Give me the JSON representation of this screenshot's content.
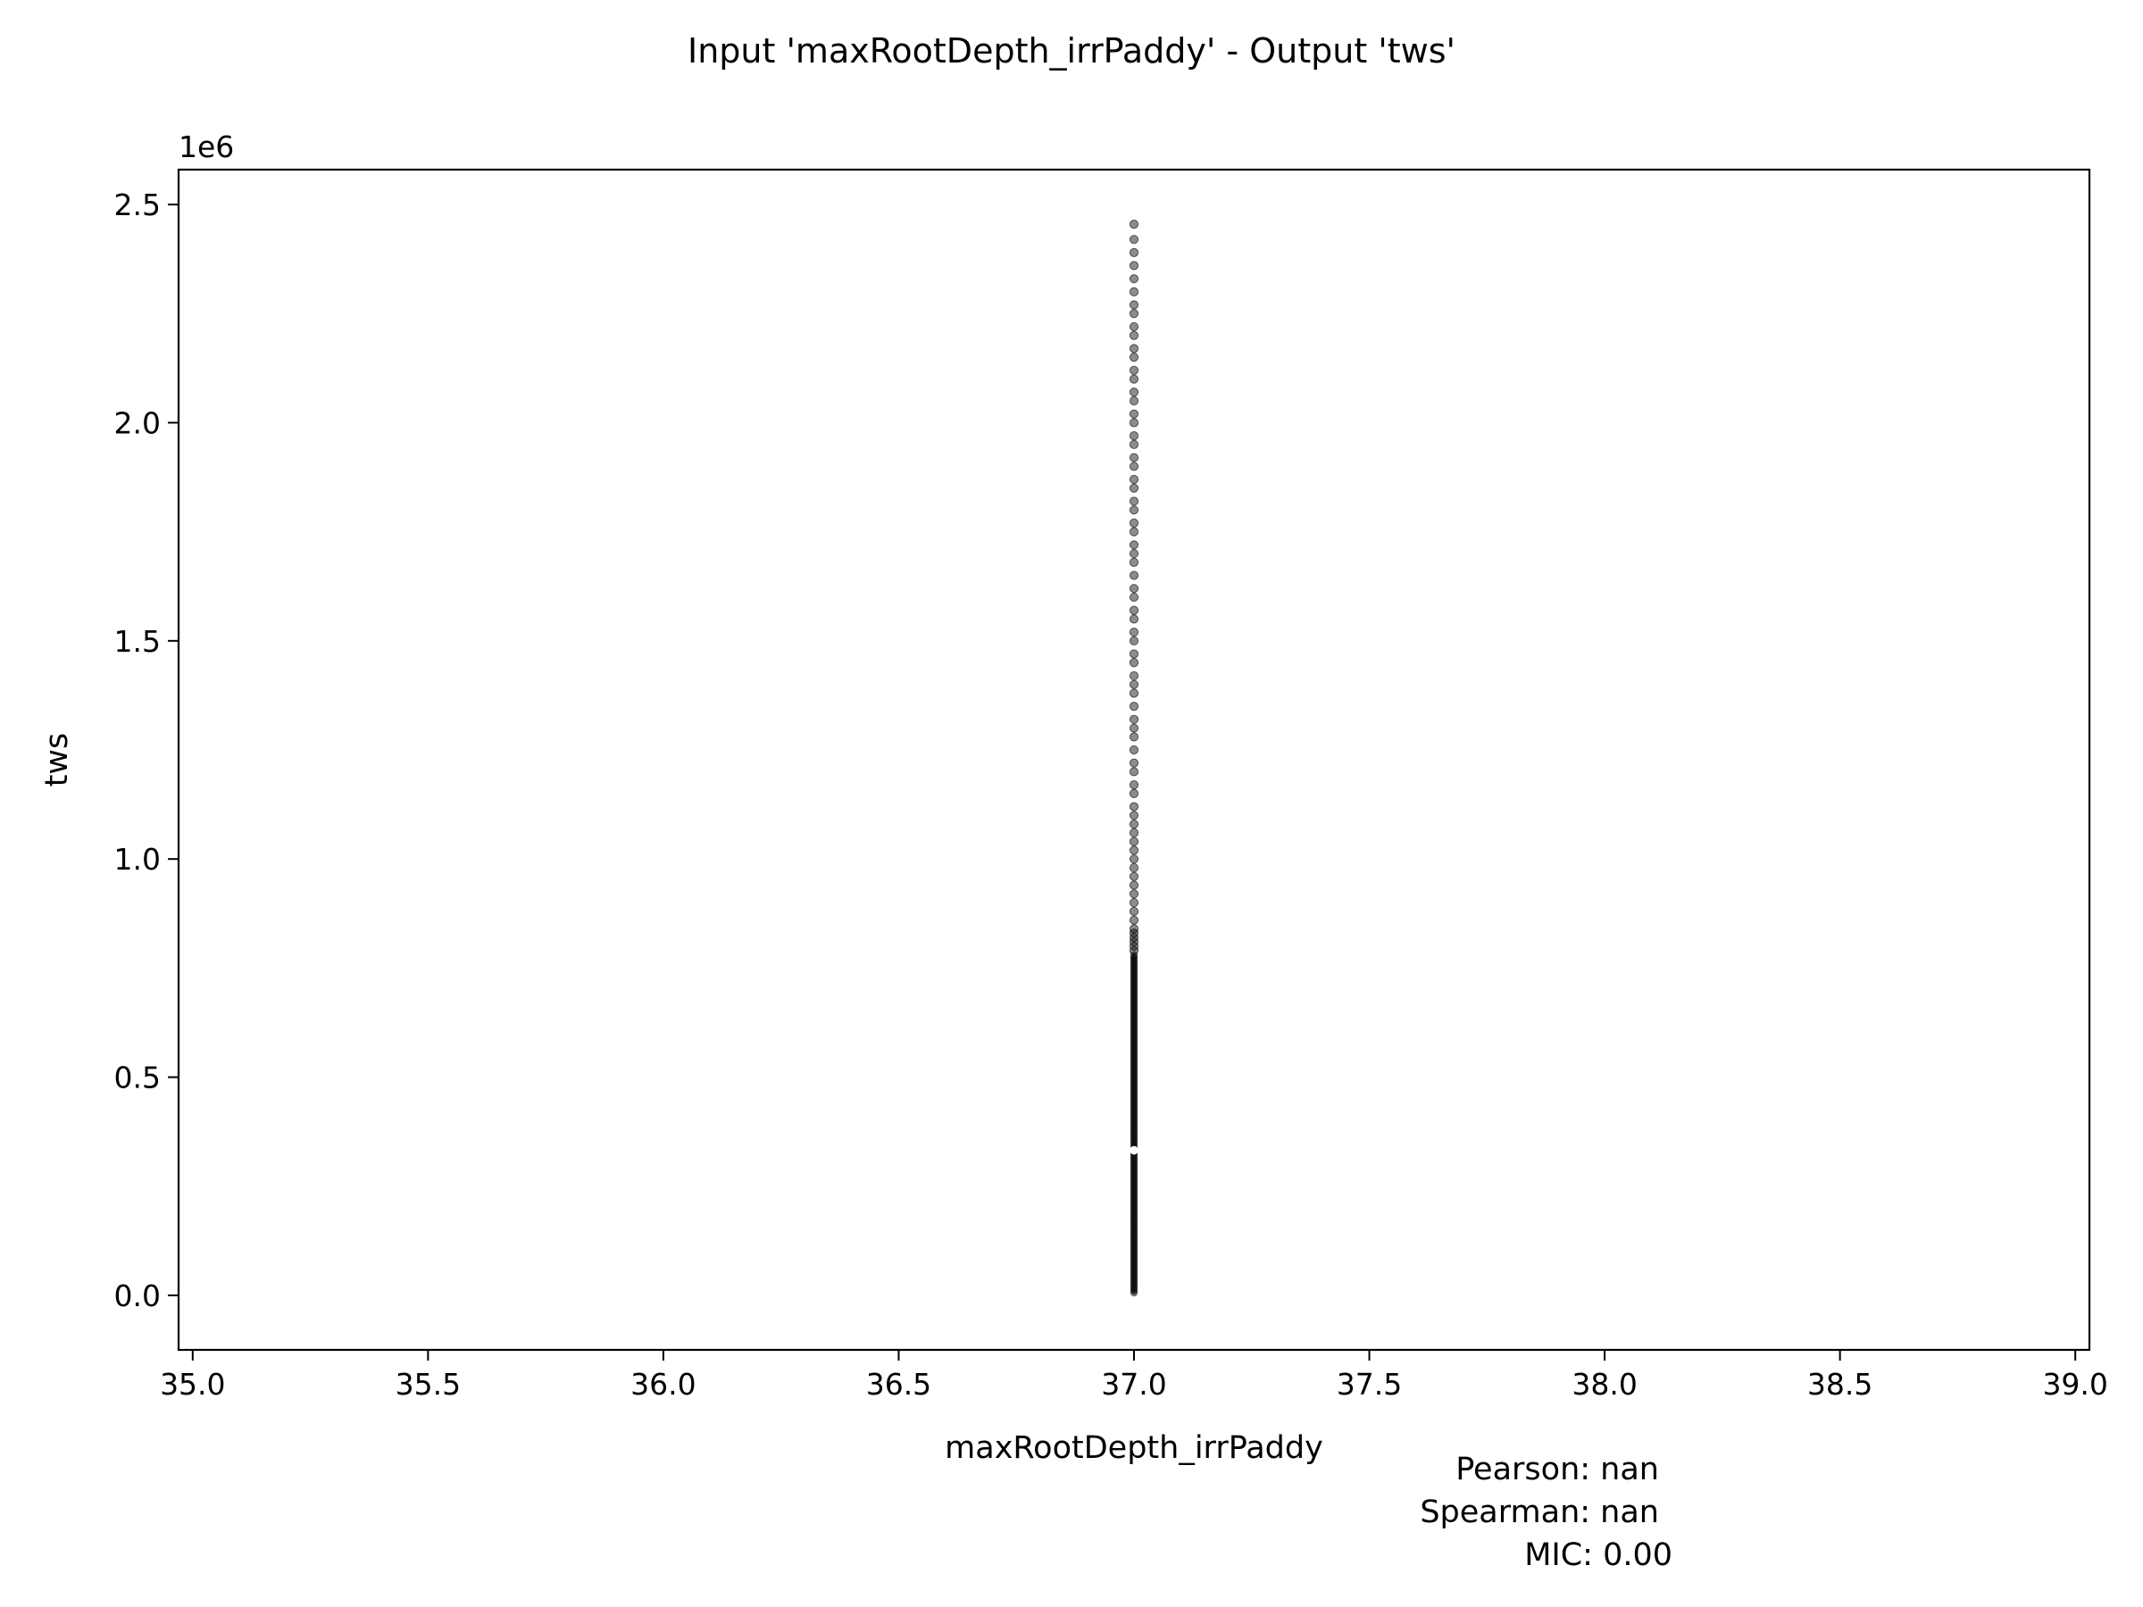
{
  "chart_data": {
    "type": "scatter",
    "title": "Input 'maxRootDepth_irrPaddy' - Output 'tws'",
    "xlabel": "maxRootDepth_irrPaddy",
    "ylabel": "tws",
    "y_offset_label": "1e6",
    "xlim": [
      34.97,
      39.03
    ],
    "ylim": [
      -0.125,
      2.58
    ],
    "y_scale_factor": 1000000,
    "x_ticks": [
      35.0,
      35.5,
      36.0,
      36.5,
      37.0,
      37.5,
      38.0,
      38.5,
      39.0
    ],
    "x_tick_labels": [
      "35.0",
      "35.5",
      "36.0",
      "36.5",
      "37.0",
      "37.5",
      "38.0",
      "38.5",
      "39.0"
    ],
    "y_ticks": [
      0.0,
      0.5,
      1.0,
      1.5,
      2.0,
      2.5
    ],
    "y_tick_labels": [
      "0.0",
      "0.5",
      "1.0",
      "1.5",
      "2.0",
      "2.5"
    ],
    "grid": false,
    "marker_color": "#000000",
    "series": [
      {
        "x_value": 37.0,
        "dense_ranges": [
          [
            0.005,
            0.33
          ],
          [
            0.335,
            0.78
          ]
        ],
        "gap_range": [
          0.33,
          0.335
        ],
        "y_values": [
          0.79,
          0.8,
          0.81,
          0.82,
          0.83,
          0.84,
          0.86,
          0.88,
          0.9,
          0.92,
          0.94,
          0.96,
          0.98,
          1.0,
          1.02,
          1.04,
          1.06,
          1.08,
          1.1,
          1.12,
          1.15,
          1.17,
          1.2,
          1.22,
          1.25,
          1.28,
          1.3,
          1.32,
          1.35,
          1.38,
          1.4,
          1.42,
          1.45,
          1.47,
          1.5,
          1.52,
          1.55,
          1.57,
          1.6,
          1.62,
          1.65,
          1.68,
          1.7,
          1.72,
          1.75,
          1.77,
          1.8,
          1.82,
          1.85,
          1.87,
          1.9,
          1.92,
          1.95,
          1.97,
          2.0,
          2.02,
          2.05,
          2.07,
          2.1,
          2.12,
          2.15,
          2.17,
          2.2,
          2.22,
          2.25,
          2.27,
          2.3,
          2.33,
          2.36,
          2.39,
          2.42,
          2.455
        ]
      }
    ]
  },
  "stats": {
    "pearson": "Pearson: nan",
    "spearman": "Spearman: nan",
    "mic": "MIC: 0.00"
  }
}
